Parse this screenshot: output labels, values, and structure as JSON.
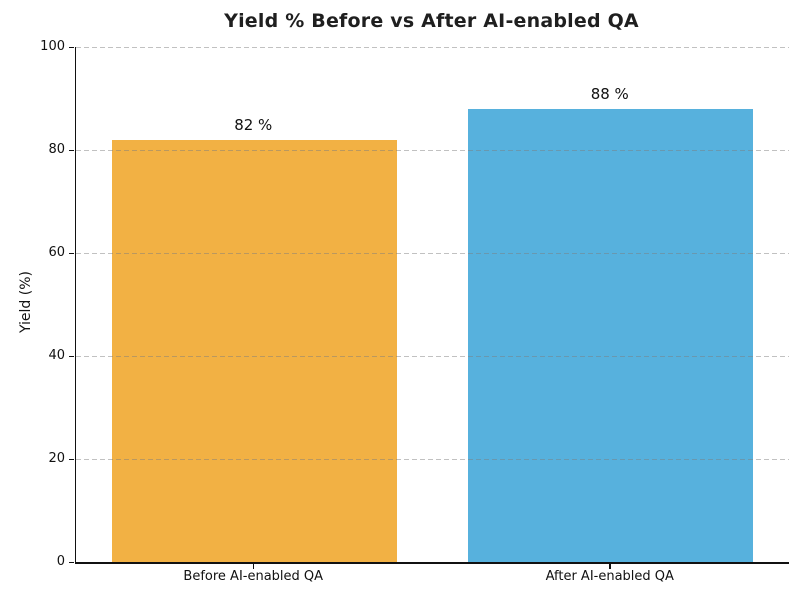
{
  "chart_data": {
    "type": "bar",
    "title": "Yield % Before vs After AI-enabled QA",
    "xlabel": "",
    "ylabel": "Yield (%)",
    "categories": [
      "Before AI-enabled QA",
      "After AI-enabled QA"
    ],
    "values": [
      82,
      88
    ],
    "value_labels": [
      "82 %",
      "88 %"
    ],
    "bar_colors": [
      "#F2B144",
      "#57B1DD"
    ],
    "ylim": [
      0,
      100
    ],
    "yticks": [
      0,
      20,
      40,
      60,
      80,
      100
    ],
    "grid": "horizontal dashed gridlines drawn over bars",
    "gridline_color": "#C9C9C9",
    "legend": "none",
    "background_color": "#FFFFFF",
    "axis_color": "#111111",
    "bar_width_fraction": 0.8
  }
}
